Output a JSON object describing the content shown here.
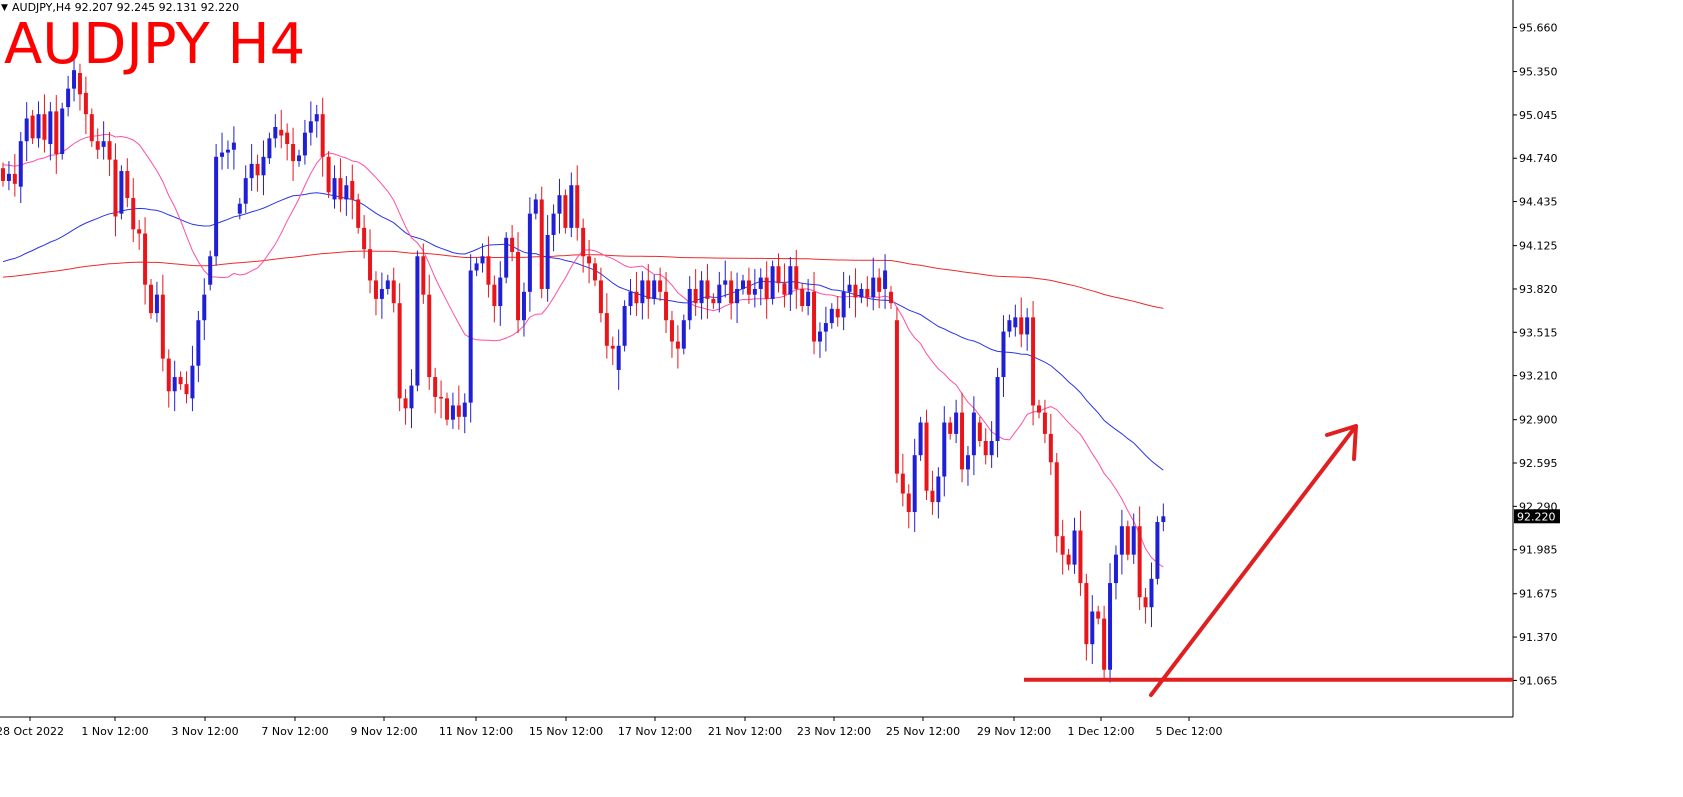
{
  "header": {
    "symbol_line": "AUDJPY,H4  92.207 92.245 92.131 92.220",
    "big_title": "AUDJPY H4"
  },
  "colors": {
    "bull": "#1f1fd6",
    "bear": "#e8151b",
    "ma_fast": "#ff4fa3",
    "ma_mid": "#2a36e6",
    "ma_slow": "#ee2b2b",
    "annotation": "#e02020",
    "title": "#ff0000"
  },
  "chart_data": {
    "type": "candlestick",
    "title": "AUDJPY H4",
    "ylim": [
      90.92,
      95.72
    ],
    "y_ticks": [
      "95.660",
      "95.350",
      "95.045",
      "94.740",
      "94.435",
      "94.125",
      "93.820",
      "93.515",
      "93.210",
      "92.900",
      "92.595",
      "92.290",
      "91.985",
      "91.675",
      "91.370",
      "91.065"
    ],
    "x_tick_labels": [
      "28 Oct 2022",
      "1 Nov 12:00",
      "3 Nov 12:00",
      "7 Nov 12:00",
      "9 Nov 12:00",
      "11 Nov 12:00",
      "15 Nov 12:00",
      "17 Nov 12:00",
      "21 Nov 12:00",
      "23 Nov 12:00",
      "25 Nov 12:00",
      "29 Nov 12:00",
      "1 Dec 12:00",
      "5 Dec 12:00"
    ],
    "current_price": "92.220",
    "candles": [
      [
        94.67,
        94.58
      ],
      [
        94.58,
        94.63
      ],
      [
        94.63,
        94.56
      ],
      [
        94.54,
        94.86
      ],
      [
        94.86,
        95.02
      ],
      [
        95.04,
        94.88
      ],
      [
        94.88,
        95.05
      ],
      [
        95.05,
        94.87
      ],
      [
        94.84,
        95.07
      ],
      [
        95.07,
        94.77
      ],
      [
        94.77,
        95.09
      ],
      [
        95.1,
        95.23
      ],
      [
        95.23,
        95.36
      ],
      [
        95.34,
        95.19
      ],
      [
        95.2,
        95.05
      ],
      [
        95.05,
        94.86
      ],
      [
        94.86,
        94.8
      ],
      [
        94.82,
        94.86
      ],
      [
        94.86,
        94.73
      ],
      [
        94.73,
        94.33
      ],
      [
        94.35,
        94.65
      ],
      [
        94.65,
        94.46
      ],
      [
        94.46,
        94.24
      ],
      [
        94.24,
        94.21
      ],
      [
        94.21,
        93.85
      ],
      [
        93.85,
        93.65
      ],
      [
        93.65,
        93.78
      ],
      [
        93.78,
        93.33
      ],
      [
        93.33,
        93.1
      ],
      [
        93.1,
        93.2
      ],
      [
        93.2,
        93.15
      ],
      [
        93.15,
        93.08
      ],
      [
        93.05,
        93.28
      ],
      [
        93.28,
        93.6
      ],
      [
        93.6,
        93.78
      ],
      [
        93.85,
        94.05
      ],
      [
        94.05,
        94.75
      ],
      [
        94.75,
        94.78
      ],
      [
        94.78,
        94.8
      ],
      [
        94.8,
        94.85
      ],
      [
        94.35,
        94.42
      ],
      [
        94.42,
        94.6
      ],
      [
        94.6,
        94.7
      ],
      [
        94.7,
        94.62
      ],
      [
        94.62,
        94.75
      ],
      [
        94.74,
        94.88
      ],
      [
        94.88,
        94.96
      ],
      [
        94.94,
        94.9
      ],
      [
        94.92,
        94.84
      ],
      [
        94.84,
        94.72
      ],
      [
        94.72,
        94.76
      ],
      [
        94.76,
        94.92
      ],
      [
        94.92,
        95.0
      ],
      [
        95.0,
        95.05
      ],
      [
        95.05,
        94.75
      ],
      [
        94.75,
        94.5
      ],
      [
        94.45,
        94.6
      ],
      [
        94.6,
        94.45
      ],
      [
        94.45,
        94.55
      ],
      [
        94.58,
        94.45
      ],
      [
        94.45,
        94.25
      ],
      [
        94.25,
        94.1
      ],
      [
        94.1,
        93.88
      ],
      [
        93.88,
        93.75
      ],
      [
        93.75,
        93.82
      ],
      [
        93.82,
        93.88
      ],
      [
        93.88,
        93.72
      ],
      [
        93.72,
        93.05
      ],
      [
        93.05,
        92.98
      ],
      [
        92.98,
        93.14
      ],
      [
        93.14,
        94.05
      ],
      [
        94.05,
        93.78
      ],
      [
        93.78,
        93.2
      ],
      [
        93.2,
        93.06
      ],
      [
        93.06,
        93.05
      ],
      [
        93.05,
        92.9
      ],
      [
        92.9,
        93.0
      ],
      [
        93.0,
        92.92
      ],
      [
        92.92,
        93.02
      ],
      [
        93.02,
        93.95
      ],
      [
        93.95,
        94.0
      ],
      [
        94.0,
        94.05
      ],
      [
        94.05,
        93.85
      ],
      [
        93.85,
        93.7
      ],
      [
        93.7,
        93.9
      ],
      [
        93.9,
        94.18
      ],
      [
        94.18,
        94.08
      ],
      [
        94.08,
        93.6
      ],
      [
        93.6,
        93.8
      ],
      [
        93.8,
        94.35
      ],
      [
        94.35,
        94.45
      ],
      [
        94.45,
        93.82
      ],
      [
        93.82,
        94.2
      ],
      [
        94.2,
        94.35
      ],
      [
        94.35,
        94.48
      ],
      [
        94.48,
        94.25
      ],
      [
        94.25,
        94.55
      ],
      [
        94.55,
        94.25
      ],
      [
        94.25,
        94.05
      ],
      [
        94.05,
        94.0
      ],
      [
        94.0,
        93.88
      ],
      [
        93.88,
        93.65
      ],
      [
        93.65,
        93.42
      ],
      [
        93.42,
        93.4
      ],
      [
        93.25,
        93.42
      ],
      [
        93.42,
        93.7
      ],
      [
        93.7,
        93.8
      ],
      [
        93.8,
        93.72
      ],
      [
        93.72,
        93.88
      ],
      [
        93.88,
        93.75
      ],
      [
        93.75,
        93.88
      ],
      [
        93.88,
        93.8
      ],
      [
        93.8,
        93.6
      ],
      [
        93.6,
        93.45
      ],
      [
        93.45,
        93.4
      ],
      [
        93.4,
        93.6
      ],
      [
        93.6,
        93.82
      ],
      [
        93.82,
        93.72
      ],
      [
        93.72,
        93.88
      ],
      [
        93.88,
        93.75
      ],
      [
        93.75,
        93.72
      ],
      [
        93.72,
        93.85
      ],
      [
        93.85,
        93.88
      ],
      [
        93.88,
        93.72
      ],
      [
        93.72,
        93.82
      ],
      [
        93.82,
        93.88
      ],
      [
        93.88,
        93.78
      ],
      [
        93.78,
        93.82
      ],
      [
        93.82,
        93.9
      ],
      [
        93.9,
        93.75
      ],
      [
        93.75,
        93.98
      ],
      [
        93.98,
        93.86
      ],
      [
        93.86,
        93.78
      ],
      [
        93.78,
        93.98
      ],
      [
        93.98,
        93.82
      ],
      [
        93.82,
        93.7
      ],
      [
        93.7,
        93.8
      ],
      [
        93.8,
        93.45
      ],
      [
        93.45,
        93.52
      ],
      [
        93.52,
        93.58
      ],
      [
        93.58,
        93.68
      ],
      [
        93.68,
        93.62
      ],
      [
        93.62,
        93.8
      ],
      [
        93.8,
        93.85
      ],
      [
        93.85,
        93.76
      ],
      [
        93.76,
        93.82
      ],
      [
        93.82,
        93.76
      ],
      [
        93.76,
        93.9
      ],
      [
        93.9,
        93.8
      ],
      [
        93.82,
        93.95
      ],
      [
        93.8,
        93.72
      ],
      [
        93.6,
        92.52
      ],
      [
        92.52,
        92.38
      ],
      [
        92.38,
        92.25
      ],
      [
        92.25,
        92.65
      ],
      [
        92.65,
        92.88
      ],
      [
        92.88,
        92.4
      ],
      [
        92.4,
        92.32
      ],
      [
        92.32,
        92.5
      ],
      [
        92.5,
        92.88
      ],
      [
        92.88,
        92.8
      ],
      [
        92.8,
        92.95
      ],
      [
        92.95,
        92.55
      ],
      [
        92.55,
        92.65
      ],
      [
        92.65,
        92.95
      ],
      [
        92.88,
        92.75
      ],
      [
        92.75,
        92.65
      ],
      [
        92.65,
        92.75
      ],
      [
        92.75,
        93.2
      ],
      [
        93.2,
        93.52
      ],
      [
        93.52,
        93.6
      ],
      [
        93.55,
        93.62
      ],
      [
        93.62,
        93.5
      ],
      [
        93.5,
        93.62
      ],
      [
        93.62,
        93.0
      ],
      [
        93.0,
        92.95
      ],
      [
        92.95,
        92.8
      ],
      [
        92.8,
        92.6
      ],
      [
        92.6,
        92.08
      ],
      [
        92.08,
        91.95
      ],
      [
        91.95,
        91.88
      ],
      [
        91.88,
        92.12
      ],
      [
        92.12,
        91.75
      ],
      [
        91.75,
        91.32
      ],
      [
        91.32,
        91.55
      ],
      [
        91.55,
        91.5
      ],
      [
        91.5,
        91.14
      ],
      [
        91.14,
        91.75
      ],
      [
        91.75,
        91.95
      ],
      [
        91.95,
        92.15
      ],
      [
        92.15,
        91.95
      ],
      [
        91.95,
        92.15
      ],
      [
        92.15,
        91.65
      ],
      [
        91.65,
        91.58
      ],
      [
        91.58,
        91.78
      ],
      [
        91.78,
        92.18
      ],
      [
        92.18,
        92.22
      ]
    ],
    "support_level": 91.07
  }
}
